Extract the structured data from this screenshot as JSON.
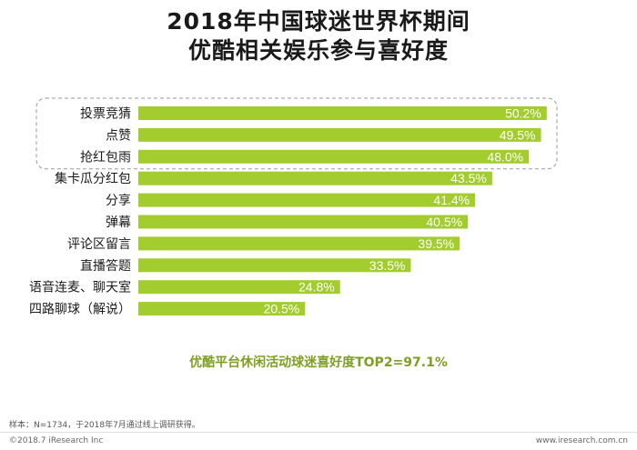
{
  "header": {
    "title_line1": "2018年中国球迷世界杯期间",
    "title_line2": "优酷相关娱乐参与喜好度"
  },
  "chart_data": {
    "type": "bar",
    "orientation": "horizontal",
    "categories": [
      "投票竞猜",
      "点赞",
      "抢红包雨",
      "集卡瓜分红包",
      "分享",
      "弹幕",
      "评论区留言",
      "直播答题",
      "语音连麦、聊天室",
      "四路聊球（解说）"
    ],
    "values": [
      50.2,
      49.5,
      48.0,
      43.5,
      41.4,
      40.5,
      39.5,
      33.5,
      24.8,
      20.5
    ],
    "value_labels": [
      "50.2%",
      "49.5%",
      "48.0%",
      "43.5%",
      "41.4%",
      "40.5%",
      "39.5%",
      "33.5%",
      "24.8%",
      "20.5%"
    ],
    "highlighted_top": 3,
    "bar_color": "#a3cc2f"
  },
  "summary": "优酷平台休闲活动球迷喜好度TOP2=97.1%",
  "note": "样本：N=1734，于2018年7月通过线上调研获得。",
  "footer": {
    "copyright": "©2018.7 iResearch Inc",
    "site": "www.iresearch.com.cn"
  }
}
